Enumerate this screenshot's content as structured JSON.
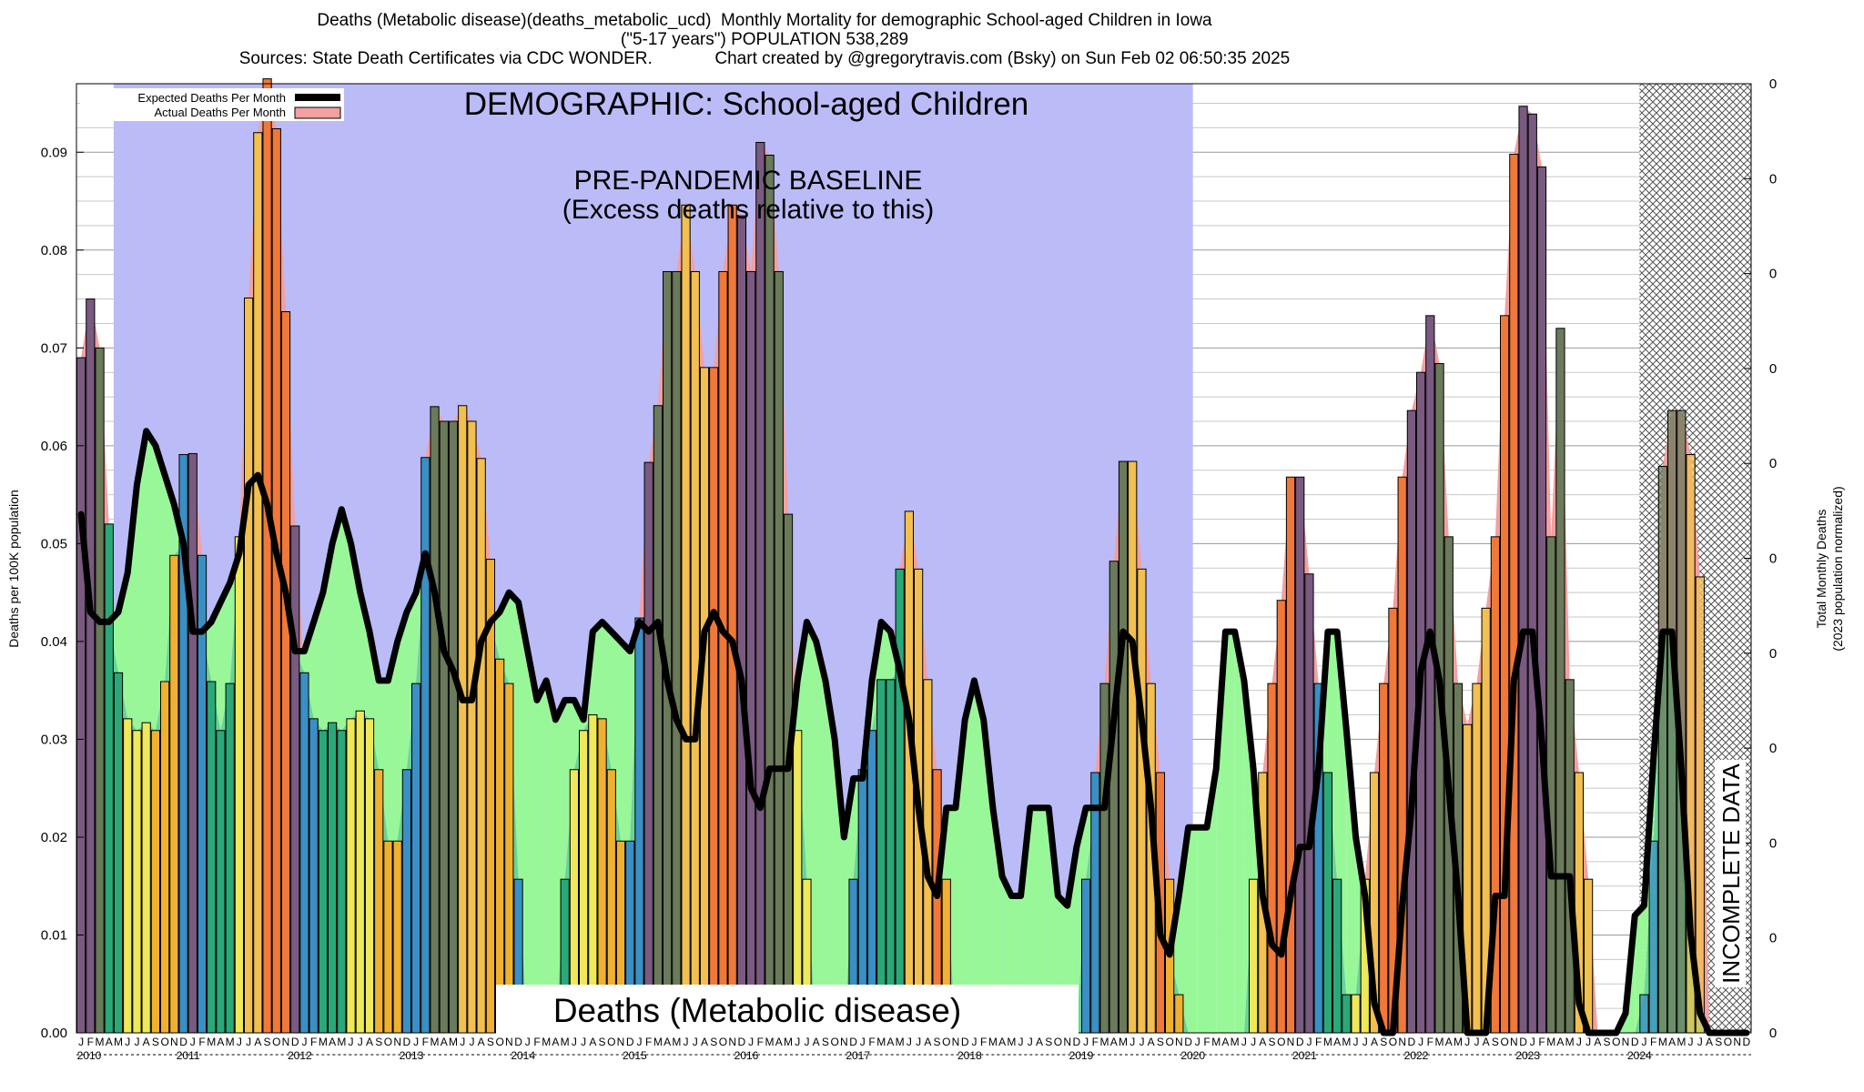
{
  "title": {
    "line1": "Deaths (Metabolic disease)(deaths_metabolic_ucd)  Monthly Mortality for demographic School-aged Children in Iowa",
    "line2": "(\"5-17 years\") POPULATION 538,289",
    "line3": "Sources: State Death Certificates via CDC WONDER.             Chart created by @gregorytravis.com (Bsky) on Sun Feb 02 06:50:35 2025"
  },
  "annotations": {
    "demographic": "DEMOGRAPHIC: School-aged Children",
    "baseline_line1": "PRE-PANDEMIC BASELINE",
    "baseline_line2": "(Excess deaths relative to this)",
    "cause": "Deaths (Metabolic disease)",
    "incomplete": "INCOMPLETE DATA"
  },
  "legend": {
    "expected": "Expected Deaths Per Month",
    "actual": "Actual Deaths Per Month"
  },
  "colors": {
    "baseline_region": "#bbbbf7",
    "incomplete_hatch": "#555555",
    "expected_line": "#000000",
    "actual_fill": "#f2a0a0",
    "deficit_fill": "#98f898",
    "overlap_fill": "#6ad496",
    "winter": "#3a8fc4",
    "spring": "#2aa878",
    "summer": "#eee85a",
    "autumn": "#f0b030",
    "excess_winter": "#7a5a80",
    "excess_spring": "#6a7a5a",
    "excess_summer": "#f2c050",
    "excess_autumn": "#f07838"
  },
  "chart_data": {
    "type": "bar",
    "ylabel": "Deaths per 100K population",
    "ylabel_right_line1": "Total Monthly Deaths",
    "ylabel_right_line2": "(2023 population normalized)",
    "ylim": [
      0,
      0.097
    ],
    "yticks": [
      "0.00",
      "0.01",
      "0.02",
      "0.03",
      "0.04",
      "0.05",
      "0.06",
      "0.07",
      "0.08",
      "0.09"
    ],
    "right_ticks": [
      "0",
      "0",
      "0",
      "0",
      "0",
      "0",
      "0",
      "0",
      "0",
      "0",
      "0"
    ],
    "years": [
      "2010",
      "2011",
      "2012",
      "2013",
      "2014",
      "2015",
      "2016",
      "2017",
      "2018",
      "2019",
      "2020",
      "2021",
      "2022",
      "2023",
      "2024"
    ],
    "month_letters": [
      "J",
      "F",
      "M",
      "A",
      "M",
      "J",
      "J",
      "A",
      "S",
      "O",
      "N",
      "D"
    ],
    "baseline_period": [
      "2010-01",
      "2019-12"
    ],
    "incomplete_period": [
      "2024-01",
      "2024-12"
    ],
    "series": [
      {
        "name": "Actual Deaths Per Month",
        "values": [
          0.069,
          0.075,
          0.07,
          0.052,
          0.0368,
          0.0321,
          0.0309,
          0.0317,
          0.0309,
          0.0359,
          0.0488,
          0.0591,
          0.0592,
          0.0488,
          0.0359,
          0.0309,
          0.0357,
          0.0507,
          0.0751,
          0.092,
          0.0975,
          0.0924,
          0.0737,
          0.0518,
          0.0368,
          0.0321,
          0.0309,
          0.0317,
          0.0309,
          0.0321,
          0.0329,
          0.0321,
          0.0269,
          0.0196,
          0.0196,
          0.0269,
          0.0357,
          0.0588,
          0.064,
          0.0625,
          0.0625,
          0.0641,
          0.0625,
          0.0587,
          0.0484,
          0.0382,
          0.0357,
          0.0157,
          0.0,
          0.0,
          0.0,
          0.0,
          0.0157,
          0.0269,
          0.0309,
          0.0325,
          0.0321,
          0.0269,
          0.0196,
          0.0196,
          0.0424,
          0.0583,
          0.0641,
          0.0778,
          0.0778,
          0.0846,
          0.0778,
          0.068,
          0.068,
          0.0778,
          0.0846,
          0.0835,
          0.0778,
          0.091,
          0.0897,
          0.0778,
          0.053,
          0.0309,
          0.0157,
          0.0,
          0.0,
          0.0,
          0.0,
          0.0157,
          0.0269,
          0.0309,
          0.0361,
          0.0361,
          0.0474,
          0.0533,
          0.0474,
          0.0361,
          0.0269,
          0.0157,
          0.0,
          0.0,
          0.0,
          0.0,
          0.0,
          0.0,
          0.0,
          0.0,
          0.0,
          0.0,
          0.0,
          0.0,
          0.0,
          0.0,
          0.0157,
          0.0266,
          0.0357,
          0.0482,
          0.0584,
          0.0584,
          0.0474,
          0.0357,
          0.0266,
          0.0157,
          0.0039,
          0.0,
          0.0,
          0.0,
          0.0,
          0.0,
          0.0,
          0.0,
          0.0157,
          0.0266,
          0.0357,
          0.0442,
          0.0568,
          0.0568,
          0.0469,
          0.0357,
          0.0266,
          0.0157,
          0.0039,
          0.0039,
          0.0157,
          0.0266,
          0.0357,
          0.0434,
          0.0568,
          0.0636,
          0.0675,
          0.0733,
          0.0684,
          0.0507,
          0.0357,
          0.0315,
          0.0357,
          0.0434,
          0.0507,
          0.0733,
          0.0898,
          0.0947,
          0.0939,
          0.0885,
          0.0507,
          0.072,
          0.0361,
          0.0266,
          0.0157,
          0.0,
          0.0,
          0.0,
          0.0,
          0.0,
          0.0039,
          0.0196,
          0.0579,
          0.0636,
          0.0636,
          0.0591,
          0.0466,
          0.0,
          0.0,
          0.0,
          0.0,
          0.0
        ]
      },
      {
        "name": "Expected Deaths Per Month",
        "values": [
          0.053,
          0.043,
          0.042,
          0.042,
          0.043,
          0.047,
          0.056,
          0.0615,
          0.06,
          0.057,
          0.054,
          0.05,
          0.041,
          0.041,
          0.042,
          0.044,
          0.046,
          0.049,
          0.056,
          0.057,
          0.054,
          0.049,
          0.045,
          0.039,
          0.039,
          0.042,
          0.045,
          0.05,
          0.0535,
          0.05,
          0.045,
          0.041,
          0.036,
          0.036,
          0.04,
          0.043,
          0.045,
          0.049,
          0.045,
          0.039,
          0.037,
          0.034,
          0.034,
          0.04,
          0.042,
          0.043,
          0.045,
          0.044,
          0.039,
          0.034,
          0.036,
          0.032,
          0.034,
          0.034,
          0.032,
          0.041,
          0.042,
          0.041,
          0.04,
          0.039,
          0.042,
          0.041,
          0.042,
          0.036,
          0.032,
          0.03,
          0.03,
          0.041,
          0.043,
          0.041,
          0.04,
          0.036,
          0.025,
          0.023,
          0.027,
          0.027,
          0.027,
          0.036,
          0.042,
          0.04,
          0.036,
          0.03,
          0.02,
          0.026,
          0.026,
          0.036,
          0.042,
          0.041,
          0.037,
          0.032,
          0.023,
          0.016,
          0.014,
          0.023,
          0.023,
          0.032,
          0.036,
          0.032,
          0.023,
          0.016,
          0.014,
          0.014,
          0.023,
          0.023,
          0.023,
          0.014,
          0.013,
          0.019,
          0.023,
          0.023,
          0.023,
          0.032,
          0.041,
          0.04,
          0.032,
          0.023,
          0.01,
          0.008,
          0.014,
          0.021,
          0.021,
          0.021,
          0.027,
          0.041,
          0.041,
          0.036,
          0.027,
          0.014,
          0.009,
          0.008,
          0.014,
          0.019,
          0.019,
          0.027,
          0.041,
          0.041,
          0.031,
          0.02,
          0.014,
          0.003,
          0.0,
          0.0,
          0.013,
          0.023,
          0.037,
          0.041,
          0.036,
          0.025,
          0.014,
          0.0,
          0.0,
          0.0,
          0.014,
          0.014,
          0.036,
          0.041,
          0.041,
          0.03,
          0.016,
          0.016,
          0.016,
          0.003,
          0.0,
          0.0,
          0.0,
          0.0,
          0.002,
          0.012,
          0.013,
          0.028,
          0.041,
          0.041,
          0.027,
          0.01,
          0.002,
          0.0,
          0.0,
          0.0,
          0.0,
          0.0
        ]
      }
    ]
  }
}
